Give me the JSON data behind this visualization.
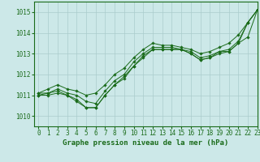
{
  "background_color": "#cce8e8",
  "grid_color": "#aacccc",
  "line_color": "#1a6b1a",
  "marker_color": "#1a6b1a",
  "xlabel": "Graphe pression niveau de la mer (hPa)",
  "xlim": [
    -0.5,
    23
  ],
  "ylim": [
    1009.5,
    1015.5
  ],
  "yticks": [
    1010,
    1011,
    1012,
    1013,
    1014,
    1015
  ],
  "xticks": [
    0,
    1,
    2,
    3,
    4,
    5,
    6,
    7,
    8,
    9,
    10,
    11,
    12,
    13,
    14,
    15,
    16,
    17,
    18,
    19,
    20,
    21,
    22,
    23
  ],
  "series": [
    [
      1011.0,
      1011.1,
      1011.2,
      1011.0,
      1010.8,
      1010.4,
      1010.4,
      1011.0,
      1011.5,
      1011.9,
      1012.4,
      1012.8,
      1013.2,
      1013.2,
      1013.2,
      1013.2,
      1013.0,
      1012.7,
      1012.8,
      1013.0,
      1013.1,
      1013.5,
      1013.8,
      1015.1
    ],
    [
      1011.0,
      1011.0,
      1011.1,
      1011.0,
      1010.7,
      1010.4,
      1010.4,
      1011.0,
      1011.5,
      1011.8,
      1012.4,
      1012.9,
      1013.2,
      1013.2,
      1013.2,
      1013.2,
      1013.0,
      1012.7,
      1012.8,
      1013.1,
      1013.1,
      1013.5,
      1014.5,
      1015.1
    ],
    [
      1011.1,
      1011.1,
      1011.3,
      1011.1,
      1011.0,
      1010.7,
      1010.6,
      1011.2,
      1011.7,
      1012.0,
      1012.6,
      1013.0,
      1013.3,
      1013.3,
      1013.3,
      1013.2,
      1013.1,
      1012.8,
      1012.9,
      1013.1,
      1013.2,
      1013.6,
      1014.5,
      1015.1
    ],
    [
      1011.1,
      1011.3,
      1011.5,
      1011.3,
      1011.2,
      1011.0,
      1011.1,
      1011.5,
      1012.0,
      1012.3,
      1012.8,
      1013.2,
      1013.5,
      1013.4,
      1013.4,
      1013.3,
      1013.2,
      1013.0,
      1013.1,
      1013.3,
      1013.5,
      1013.9,
      1014.5,
      1015.1
    ]
  ]
}
